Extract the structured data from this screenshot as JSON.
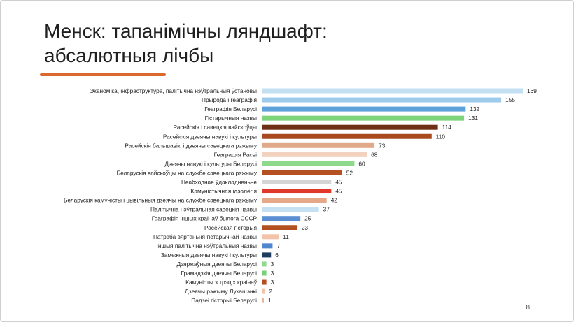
{
  "slide": {
    "title_line1": "Менск: тапанімічны ляндшафт:",
    "title_line2": "абсалютныя лічбы",
    "page_number": "8",
    "accent_color": "#d9692f"
  },
  "chart_data": {
    "type": "bar",
    "orientation": "horizontal",
    "title": "",
    "xlabel": "",
    "ylabel": "",
    "xlim": [
      0,
      169
    ],
    "grid": false,
    "legend": "none",
    "categories": [
      "Эканоміка, інфраструктура, палітычна нэўтральныя ўстановы",
      "Прырода і геаграфія",
      "Геаграфія Беларусі",
      "Гістарычныя назвы",
      "Расейскія і савецкія вайскоўцы",
      "Расейскія дзеячы навукі і культуры",
      "Расейскія бальшавікі і дзеячы савецкага рэжыму",
      "Геаграфія Расеі",
      "Дзеячы навукі і культуры Беларусі",
      "Беларускія вайскоўцы на службе савецкага рэжыму",
      "Неабходнае ўдакладненьне",
      "Камуністычная ідэалёгія",
      "Беларускія камуністы і цывільныя дзеячы на службе савецкага рэжыму",
      "Палітычна нэўтральная савецкія назвы",
      "Геаграфія іншых краінаў былога СССР",
      "Расейская гісторыя",
      "Патрэба вяртаньня гістарычнай назвы",
      "Іншыя палітычна нэўтральныя назвы",
      "Замежныя дзеячы навукі і культуры",
      "Дзяржаўныя дзеячы Беларусі",
      "Грамадзкія дзеячы Беларусі",
      "Камуністы з трэціх краінаў",
      "Дзеячы рэжыму Лукашэнкі",
      "Падзеі гісторыі Беларусі"
    ],
    "values": [
      169,
      155,
      132,
      131,
      114,
      110,
      73,
      68,
      60,
      52,
      45,
      45,
      42,
      37,
      25,
      23,
      11,
      7,
      6,
      3,
      3,
      3,
      2,
      1
    ],
    "colors": [
      "#c3dff2",
      "#9ecbeb",
      "#5fa2d9",
      "#7ed47a",
      "#6e2f14",
      "#a84a1e",
      "#e0a98a",
      "#f3d1bf",
      "#8fd98c",
      "#b45022",
      "#d5d5d5",
      "#e0382b",
      "#e5a98a",
      "#c6e0f3",
      "#5b8fd2",
      "#b2511f",
      "#f2c3a8",
      "#4f87cf",
      "#1f3c5e",
      "#8fd98c",
      "#7ad07a",
      "#b44e22",
      "#f2c3a8",
      "#e8b596"
    ]
  }
}
